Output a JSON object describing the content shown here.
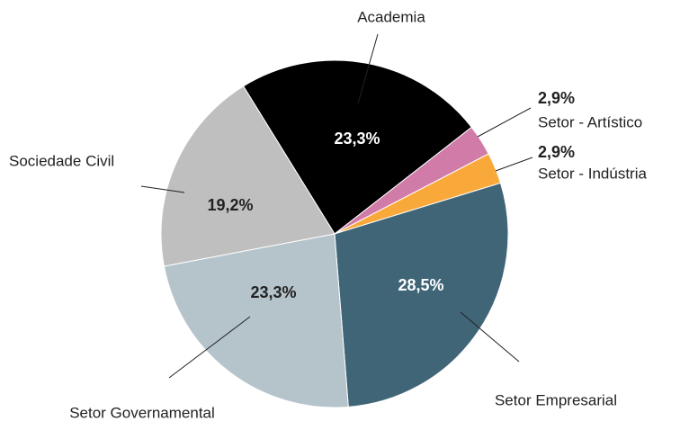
{
  "chart_data": {
    "type": "pie",
    "categories": [
      "Academia",
      "Setor - Artístico",
      "Setor - Indústria",
      "Setor Empresarial",
      "Setor Governamental",
      "Sociedade Civil"
    ],
    "values": [
      23.3,
      2.9,
      2.9,
      28.5,
      23.3,
      19.2
    ],
    "value_labels": [
      "23,3%",
      "2,9%",
      "2,9%",
      "28,5%",
      "23,3%",
      "19,2%"
    ],
    "colors": [
      "#000000",
      "#d17ba8",
      "#f9a83a",
      "#3f6577",
      "#b5c3ca",
      "#bfbfbf"
    ]
  }
}
